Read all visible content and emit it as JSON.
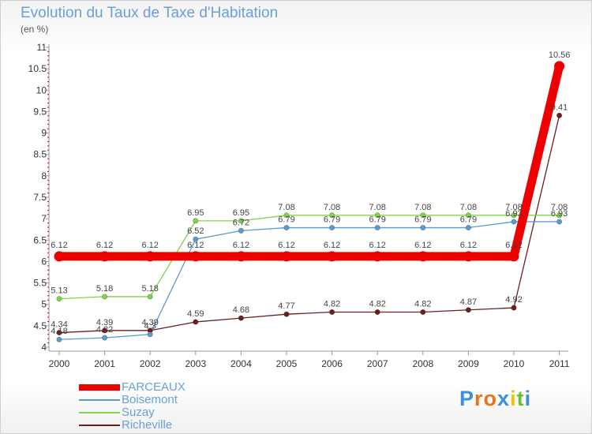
{
  "title": "Evolution du Taux de Taxe d'Habitation",
  "unit_label": "(en %)",
  "logo": {
    "text": "Proxiti",
    "letter_colors": [
      "#3d8fd6",
      "#e8731c",
      "#e8731c",
      "#3d8fd6",
      "#f2c400",
      "#6cbf2a",
      "#3d8fd6"
    ]
  },
  "chart_data": {
    "type": "line",
    "title": "Evolution du Taux de Taxe d'Habitation",
    "ylabel": "(en %)",
    "xlabel": "",
    "x": [
      "2000",
      "2001",
      "2002",
      "2003",
      "2004",
      "2005",
      "2006",
      "2007",
      "2008",
      "2009",
      "2010",
      "2011"
    ],
    "ylim": [
      4,
      11
    ],
    "yticks": [
      "4",
      "4.5",
      "5",
      "5.5",
      "6",
      "6.5",
      "7",
      "7.5",
      "8",
      "8.5",
      "9",
      "9.5",
      "10",
      "10.5",
      "11"
    ],
    "grid": false,
    "legend_position": "bottom-left",
    "series": [
      {
        "name": "FARCEAUX",
        "color": "#ee0000",
        "values": [
          6.12,
          6.12,
          6.12,
          6.12,
          6.12,
          6.12,
          6.12,
          6.12,
          6.12,
          6.12,
          6.12,
          10.56
        ],
        "labels": [
          "6.12",
          "6.12",
          "6.12",
          "6.12",
          "6.12",
          "6.12",
          "6.12",
          "6.12",
          "6.12",
          "6.12",
          "6.12",
          "10.56"
        ]
      },
      {
        "name": "Boisemont",
        "color": "#5b9bd0",
        "values": [
          4.18,
          4.22,
          4.3,
          6.52,
          6.72,
          6.79,
          6.79,
          6.79,
          6.79,
          6.79,
          6.93,
          6.93
        ],
        "labels": [
          "4.18",
          "4.22",
          "4.3",
          "6.52",
          "6.72",
          "6.79",
          "6.79",
          "6.79",
          "6.79",
          "6.79",
          "6.93",
          "6.93"
        ]
      },
      {
        "name": "Suzay",
        "color": "#7fd44a",
        "values": [
          5.13,
          5.18,
          5.18,
          6.95,
          6.95,
          7.08,
          7.08,
          7.08,
          7.08,
          7.08,
          7.08,
          7.08
        ],
        "labels": [
          "5.13",
          "5.18",
          "5.18",
          "6.95",
          "6.95",
          "7.08",
          "7.08",
          "7.08",
          "7.08",
          "7.08",
          "7.08",
          "7.08"
        ]
      },
      {
        "name": "Richeville",
        "color": "#6b1e1e",
        "values": [
          4.34,
          4.39,
          4.39,
          4.59,
          4.68,
          4.77,
          4.82,
          4.82,
          4.82,
          4.87,
          4.92,
          9.41
        ],
        "labels": [
          "4.34",
          "4.39",
          "4.39",
          "4.59",
          "4.68",
          "4.77",
          "4.82",
          "4.82",
          "4.82",
          "4.87",
          "4.92",
          "9.41"
        ]
      }
    ]
  }
}
